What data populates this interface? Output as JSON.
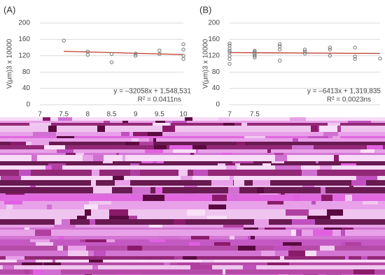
{
  "chart_data": [
    {
      "type": "scatter",
      "panel_label": "(A)",
      "ylabel": "V(μm)3 x 10000",
      "x": [
        7.5,
        8,
        8,
        8.5,
        8.5,
        9,
        9,
        9.5,
        9.5,
        10,
        10,
        10,
        10
      ],
      "values": [
        157,
        130,
        122,
        124,
        104,
        125,
        120,
        133,
        124,
        148,
        135,
        120,
        112
      ],
      "color": "#777777",
      "trendline": {
        "x": [
          7.5,
          10
        ],
        "y": [
          130.8,
          122.8
        ],
        "color": "#c0392b"
      },
      "equation": "y = –32058x + 1,548,531",
      "r2": "R² = 0.0411ns",
      "xlim": [
        7,
        10
      ],
      "xticks": [
        7,
        7.5,
        8,
        8.5,
        9,
        9.5,
        10
      ],
      "ylim": [
        0,
        200
      ],
      "yticks": [
        0,
        40,
        80,
        120,
        160,
        200
      ],
      "grid": true
    },
    {
      "type": "scatter",
      "panel_label": "(B)",
      "ylabel": "V(μm)3 x 10000",
      "x": [
        7,
        7,
        7,
        7,
        7,
        7,
        7,
        7,
        7.5,
        7.5,
        7.5,
        7.5,
        7.5,
        7.5,
        8,
        8,
        8,
        8,
        8.5,
        8.5,
        8.5,
        9,
        9,
        9,
        9.5,
        9.5,
        9.5,
        10
      ],
      "values": [
        150,
        145,
        138,
        132,
        128,
        120,
        112,
        100,
        132,
        130,
        127,
        124,
        120,
        116,
        148,
        143,
        135,
        108,
        135,
        130,
        125,
        140,
        135,
        120,
        140,
        118,
        112,
        113
      ],
      "color": "#777777",
      "trendline": {
        "x": [
          7,
          10
        ],
        "y": [
          127.5,
          125.6
        ],
        "color": "#c0392b"
      },
      "equation": "y = –6413x + 1,319,835",
      "r2": "R² = 0.0023ns",
      "xlim": [
        7,
        10
      ],
      "xticks": [
        7,
        7.5
      ],
      "ylim": [
        0,
        200
      ],
      "yticks": [
        0,
        40,
        80,
        120,
        160,
        200
      ],
      "grid": true
    }
  ]
}
